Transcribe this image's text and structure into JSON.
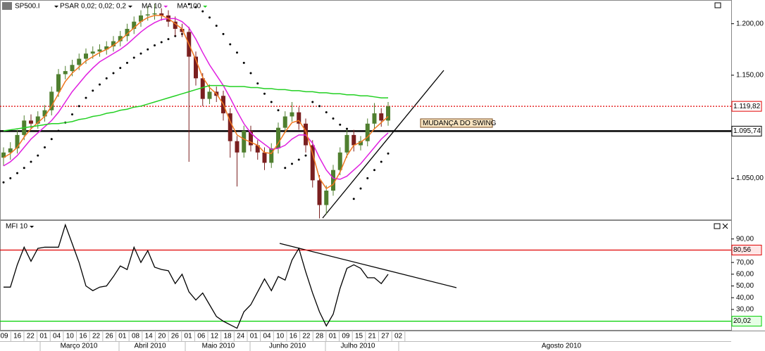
{
  "chart_data": [
    {
      "type": "candlestick",
      "title": "SP500.I",
      "open": [
        1070,
        1075,
        1079,
        1092,
        1106,
        1103,
        1110,
        1116,
        1134,
        1151,
        1154,
        1160,
        1166,
        1171,
        1173,
        1175,
        1178,
        1183,
        1188,
        1195,
        1202,
        1208,
        1209,
        1210,
        1208,
        1202,
        1195,
        1192,
        1168,
        1147,
        1127,
        1134,
        1130,
        1113,
        1086,
        1075,
        1096,
        1082,
        1075,
        1065,
        1079,
        1099,
        1110,
        1114,
        1103,
        1082,
        1048,
        1024,
        1038,
        1058,
        1075,
        1092,
        1082,
        1086,
        1103,
        1113,
        1106
      ],
      "high": [
        1080,
        1085,
        1097,
        1111,
        1112,
        1115,
        1121,
        1139,
        1156,
        1159,
        1165,
        1171,
        1176,
        1178,
        1180,
        1183,
        1188,
        1193,
        1200,
        1207,
        1213,
        1217,
        1219,
        1215,
        1213,
        1207,
        1200,
        1197,
        1173,
        1152,
        1141,
        1139,
        1135,
        1118,
        1091,
        1101,
        1101,
        1087,
        1080,
        1084,
        1104,
        1115,
        1124,
        1119,
        1108,
        1087,
        1053,
        1043,
        1063,
        1080,
        1097,
        1097,
        1091,
        1108,
        1123,
        1118,
        1124
      ],
      "low": [
        1062,
        1068,
        1074,
        1087,
        1098,
        1098,
        1105,
        1111,
        1129,
        1146,
        1149,
        1155,
        1161,
        1166,
        1168,
        1170,
        1173,
        1178,
        1183,
        1190,
        1197,
        1203,
        1204,
        1203,
        1197,
        1188,
        1187,
        1066,
        1140,
        1120,
        1122,
        1124,
        1106,
        1070,
        1042,
        1070,
        1076,
        1068,
        1058,
        1060,
        1074,
        1094,
        1105,
        1097,
        1075,
        1041,
        1011,
        1015,
        1033,
        1053,
        1070,
        1076,
        1077,
        1081,
        1098,
        1100,
        1101
      ],
      "close": [
        1075,
        1079,
        1092,
        1106,
        1103,
        1110,
        1116,
        1134,
        1151,
        1154,
        1160,
        1166,
        1171,
        1173,
        1175,
        1178,
        1183,
        1188,
        1195,
        1202,
        1208,
        1209,
        1210,
        1208,
        1202,
        1195,
        1192,
        1168,
        1147,
        1127,
        1134,
        1130,
        1113,
        1086,
        1075,
        1096,
        1082,
        1075,
        1065,
        1079,
        1099,
        1110,
        1114,
        1103,
        1082,
        1048,
        1024,
        1038,
        1058,
        1075,
        1092,
        1082,
        1086,
        1103,
        1113,
        1106,
        1119.82
      ],
      "up_color": "#4f7f2f",
      "down_color": "#7a1f1f",
      "series": [
        {
          "name": "PSAR 0,02; 0,02; 0,2",
          "color": "#000000",
          "style": "dots",
          "values": [
            1046,
            1050,
            1055,
            1060,
            1066,
            1072,
            1080,
            1088,
            1096,
            1104,
            1112,
            1120,
            1128,
            1135,
            1141,
            1147,
            1152,
            1157,
            1162,
            1167,
            1171,
            1175,
            1179,
            1182,
            1185,
            1188,
            1190,
            1219,
            1216,
            1212,
            1206,
            1198,
            1190,
            1180,
            1172,
            1162,
            1152,
            1142,
            1132,
            1124,
            1116,
            1060,
            1064,
            1068,
            1072,
            1124,
            1120,
            1114,
            1108,
            1102,
            1098,
            1030,
            1040,
            1050,
            1058,
            1066,
            1074
          ]
        },
        {
          "name": "MA 10",
          "color": "#e020e0",
          "style": "line",
          "values": [
            1062,
            1066,
            1072,
            1080,
            1088,
            1094,
            1100,
            1106,
            1114,
            1124,
            1134,
            1142,
            1150,
            1157,
            1163,
            1167,
            1171,
            1175,
            1180,
            1186,
            1192,
            1197,
            1201,
            1204,
            1205,
            1205,
            1202,
            1196,
            1185,
            1172,
            1160,
            1150,
            1140,
            1128,
            1115,
            1103,
            1094,
            1088,
            1083,
            1078,
            1079,
            1082,
            1088,
            1092,
            1092,
            1084,
            1070,
            1058,
            1050,
            1049,
            1052,
            1058,
            1064,
            1072,
            1080,
            1088,
            1094
          ]
        },
        {
          "color": "#f07820",
          "style": "line",
          "values": [
            1070,
            1074,
            1080,
            1090,
            1098,
            1104,
            1110,
            1120,
            1132,
            1144,
            1152,
            1158,
            1164,
            1168,
            1172,
            1175,
            1179,
            1184,
            1190,
            1196,
            1202,
            1206,
            1208,
            1208,
            1205,
            1200,
            1195,
            1180,
            1165,
            1148,
            1138,
            1132,
            1122,
            1105,
            1092,
            1088,
            1085,
            1082,
            1075,
            1074,
            1084,
            1095,
            1104,
            1106,
            1096,
            1074,
            1050,
            1040,
            1044,
            1056,
            1072,
            1082,
            1085,
            1090,
            1098,
            1104,
            1110
          ]
        },
        {
          "name": "MA 100",
          "color": "#22d022",
          "style": "line",
          "values": [
            1096,
            1097,
            1098,
            1099,
            1100,
            1101,
            1102,
            1103,
            1103,
            1104,
            1105,
            1107,
            1108,
            1110,
            1111,
            1113,
            1114,
            1116,
            1117,
            1119,
            1120,
            1122,
            1124,
            1126,
            1128,
            1130,
            1132,
            1134,
            1136,
            1138,
            1140,
            1140,
            1140,
            1139,
            1139,
            1139,
            1138,
            1138,
            1137,
            1137,
            1136,
            1136,
            1135,
            1135,
            1134,
            1134,
            1133,
            1133,
            1132,
            1132,
            1131,
            1131,
            1130,
            1130,
            1129,
            1128,
            1128
          ]
        }
      ],
      "ylim": [
        1010,
        1223
      ],
      "yticks": [
        {
          "value": 1050,
          "label": "1.050,00"
        },
        {
          "value": 1150,
          "label": "1.150,00"
        },
        {
          "value": 1200,
          "label": "1.200,00"
        }
      ],
      "reference_lines": [
        {
          "value": 1119.82,
          "label": "1.119,82",
          "color": "#e00000",
          "style": "dotted"
        },
        {
          "value": 1095.74,
          "label": "1.095,74",
          "color": "#000000",
          "style": "solid"
        }
      ],
      "annotation": "MUDANÇA DO SWING"
    },
    {
      "type": "line",
      "title": "MFI 10",
      "color": "#000000",
      "values": [
        49,
        49,
        68,
        83,
        71,
        82,
        83,
        83,
        83,
        102,
        86,
        70,
        50,
        46,
        49,
        50,
        58,
        67,
        64,
        83,
        70,
        80,
        66,
        64,
        63,
        52,
        60,
        45,
        38,
        44,
        34,
        24,
        20,
        17,
        14,
        28,
        34,
        45,
        56,
        46,
        58,
        55,
        72,
        82,
        62,
        44,
        28,
        16,
        26,
        48,
        65,
        68,
        65,
        57,
        57,
        52,
        60
      ],
      "ylim": [
        12,
        106
      ],
      "yticks": [
        {
          "value": 30,
          "label": "30,00"
        },
        {
          "value": 40,
          "label": "40,00"
        },
        {
          "value": 50,
          "label": "50,00"
        },
        {
          "value": 60,
          "label": "60,00"
        },
        {
          "value": 70,
          "label": "70,00"
        },
        {
          "value": 90,
          "label": "90,00"
        }
      ],
      "reference_lines": [
        {
          "value": 80.56,
          "label": "80,56",
          "color": "#e00000",
          "style": "solid"
        },
        {
          "value": 20.02,
          "label": "20,02",
          "color": "#00d000",
          "style": "solid"
        }
      ]
    }
  ],
  "time_axis": {
    "days": [
      "09",
      "16",
      "22",
      "01",
      "04",
      "10",
      "16",
      "22",
      "26",
      "01",
      "08",
      "14",
      "20",
      "26",
      "01",
      "06",
      "12",
      "18",
      "24",
      "01",
      "04",
      "10",
      "16",
      "22",
      "28",
      "01",
      "09",
      "15",
      "21",
      "27",
      "02"
    ],
    "months": [
      "Março 2010",
      "Abril 2010",
      "Maio 2010",
      "Junho 2010",
      "Julho 2010",
      "Agosto 2010"
    ]
  }
}
